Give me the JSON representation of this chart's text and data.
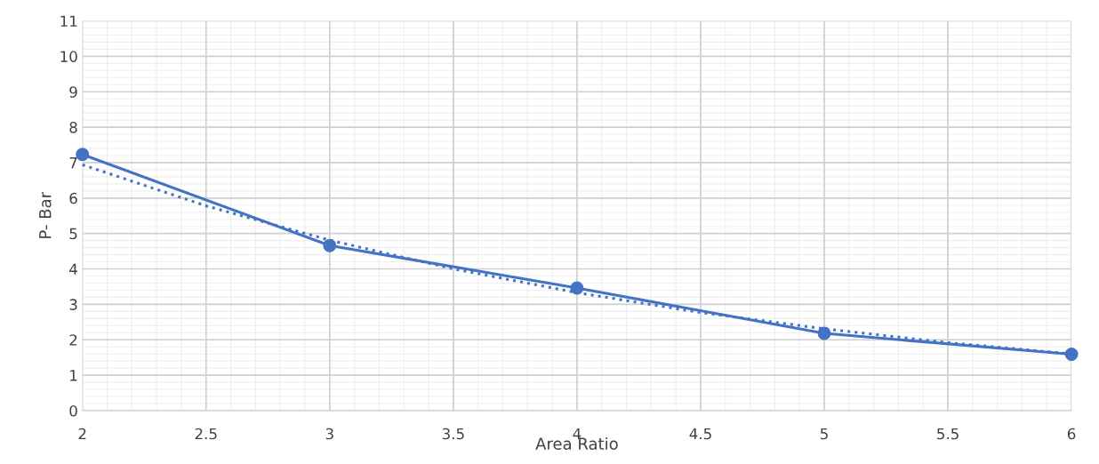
{
  "chart_data": {
    "type": "line",
    "xlabel": "Area Ratio",
    "ylabel": "P- Bar",
    "xlim": [
      2,
      6
    ],
    "xticks": [
      2,
      2.5,
      3,
      3.5,
      4,
      4.5,
      5,
      5.5,
      6
    ],
    "ylim": [
      0,
      11
    ],
    "yticks": [
      0,
      1,
      2,
      3,
      4,
      5,
      6,
      7,
      8,
      9,
      10,
      11
    ],
    "grid": true,
    "legend": false,
    "series": [
      {
        "color": "#4472c4",
        "x": [
          2,
          3,
          4,
          5,
          6
        ],
        "values": [
          7.23,
          4.66,
          3.46,
          2.18,
          1.59
        ],
        "marker": "circle",
        "line_style": "solid"
      },
      {
        "color": "#4472c4",
        "x": [
          2,
          2.5,
          3,
          3.5,
          4,
          4.5,
          5,
          5.5,
          6
        ],
        "values": [
          6.94,
          5.78,
          4.81,
          4.0,
          3.33,
          2.77,
          2.31,
          1.92,
          1.6
        ],
        "marker": "none",
        "line_style": "dotted"
      }
    ]
  }
}
